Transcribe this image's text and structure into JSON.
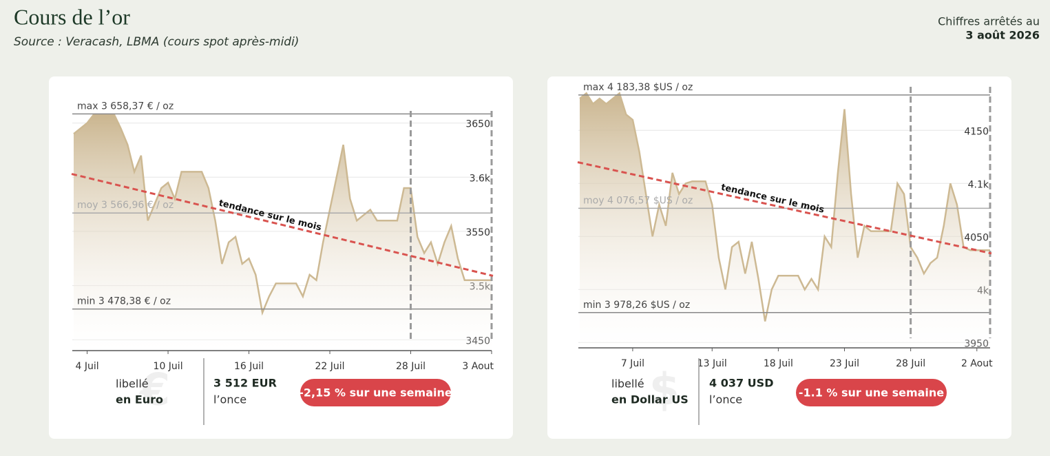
{
  "header": {
    "title": "Cours de l’or",
    "subtitle": "Source : Veracash, LBMA (cours spot après-midi)",
    "date_label": "Chiffres arrêtés au",
    "date": "3 août 2026"
  },
  "chart_data": [
    {
      "type": "area",
      "color": "#cdb993",
      "categories": [
        null,
        null,
        "4 Juil",
        null,
        null,
        null,
        null,
        null,
        null,
        null,
        null,
        null,
        null,
        null,
        "10 Juil",
        null,
        null,
        null,
        null,
        null,
        null,
        null,
        null,
        null,
        null,
        null,
        "16 Juil",
        null,
        null,
        null,
        null,
        null,
        null,
        null,
        null,
        null,
        null,
        null,
        "22 Juil",
        null,
        null,
        null,
        null,
        null,
        null,
        null,
        null,
        null,
        null,
        null,
        "28 Juil",
        null,
        null,
        null,
        null,
        null,
        null,
        null,
        null,
        null,
        null,
        null,
        "3 Aout"
      ],
      "values": [
        3640,
        3645,
        3650,
        3658,
        3658,
        3658,
        3658,
        3645,
        3630,
        3605,
        3620,
        3560,
        3575,
        3590,
        3595,
        3580,
        3605,
        3605,
        3605,
        3605,
        3590,
        3560,
        3520,
        3540,
        3545,
        3520,
        3525,
        3510,
        3475,
        3490,
        3502,
        3502,
        3502,
        3502,
        3490,
        3510,
        3505,
        3540,
        3570,
        3600,
        3630,
        3580,
        3560,
        3565,
        3570,
        3560,
        3560,
        3560,
        3560,
        3590,
        3590,
        3545,
        3530,
        3540,
        3520,
        3540,
        3555,
        3525,
        3505,
        3505,
        3505,
        3505,
        3505
      ],
      "ylim": [
        3440,
        3665
      ],
      "yticks": [
        3450,
        {
          "value": 3500,
          "label": "3.5k"
        },
        3550,
        {
          "value": 3600,
          "label": "3.6k"
        },
        3650
      ],
      "grid": true,
      "reference_lines": [
        {
          "value": 3658.37,
          "label": "max 3 658,37 € / oz"
        },
        {
          "value": 3566.96,
          "label": "moy 3 566,96 € / oz"
        },
        {
          "value": 3478.38,
          "label": "min 3 478,38 € / oz"
        }
      ],
      "trend": {
        "label": "tendance sur le mois",
        "values": [
          3603,
          3509
        ],
        "color": "#d9534f"
      }
    },
    {
      "type": "area",
      "color": "#cdb993",
      "categories": [
        null,
        null,
        null,
        null,
        null,
        null,
        null,
        null,
        "7 Juil",
        null,
        null,
        null,
        null,
        null,
        null,
        null,
        null,
        null,
        null,
        null,
        "13 Juil",
        null,
        null,
        null,
        null,
        null,
        null,
        null,
        null,
        null,
        "18 Juil",
        null,
        null,
        null,
        null,
        null,
        null,
        null,
        null,
        null,
        "23 Juil",
        null,
        null,
        null,
        null,
        null,
        null,
        null,
        null,
        null,
        "28 Juil",
        null,
        null,
        null,
        null,
        null,
        null,
        null,
        null,
        null,
        "2 Aout",
        null,
        null
      ],
      "values": [
        4180,
        4185,
        4175,
        4180,
        4175,
        4180,
        4185,
        4165,
        4160,
        4130,
        4090,
        4050,
        4080,
        4060,
        4110,
        4090,
        4100,
        4102,
        4102,
        4102,
        4080,
        4030,
        4000,
        4040,
        4045,
        4015,
        4045,
        4010,
        3970,
        4000,
        4013,
        4013,
        4013,
        4013,
        4000,
        4010,
        4000,
        4050,
        4040,
        4110,
        4170,
        4090,
        4030,
        4060,
        4055,
        4055,
        4055,
        4055,
        4100,
        4090,
        4040,
        4030,
        4015,
        4025,
        4030,
        4060,
        4100,
        4080,
        4040,
        4037,
        4037,
        4037,
        4037
      ],
      "ylim": [
        3945,
        4195
      ],
      "yticks": [
        3950,
        {
          "value": 4000,
          "label": "4k"
        },
        4050,
        {
          "value": 4100,
          "label": "4.1k"
        },
        4150
      ],
      "grid": true,
      "reference_lines": [
        {
          "value": 4183.38,
          "label": "max 4 183,38 $US / oz"
        },
        {
          "value": 4076.57,
          "label": "moy 4 076,57 $US / oz"
        },
        {
          "value": 3978.26,
          "label": "min 3 978,26 $US / oz"
        }
      ],
      "trend": {
        "label": "tendance sur le mois",
        "values": [
          4120,
          4034
        ],
        "color": "#d9534f"
      }
    }
  ],
  "cards": [
    {
      "label": "libellé",
      "currency": "en Euro",
      "symbol": "€",
      "price": "3 512 EUR",
      "unit": "l’once",
      "change": "-2,15 % sur une semaine"
    },
    {
      "label": "libellé",
      "currency": "en Dollar US",
      "symbol": "$",
      "price": "4 037 USD",
      "unit": "l’once",
      "change": "-1.1 % sur une semaine"
    }
  ]
}
